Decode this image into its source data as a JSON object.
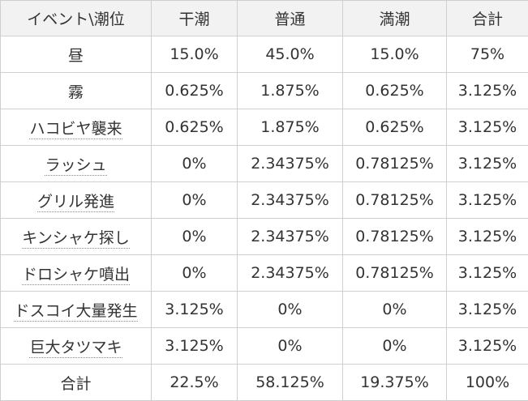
{
  "table": {
    "headers": [
      "イベント\\潮位",
      "干潮",
      "普通",
      "満潮",
      "合計"
    ],
    "rows": [
      {
        "event": "昼",
        "link": false,
        "low": "15.0%",
        "normal": "45.0%",
        "high": "15.0%",
        "total": "75%"
      },
      {
        "event": "霧",
        "link": false,
        "low": "0.625%",
        "normal": "1.875%",
        "high": "0.625%",
        "total": "3.125%"
      },
      {
        "event": "ハコビヤ襲来",
        "link": true,
        "low": "0.625%",
        "normal": "1.875%",
        "high": "0.625%",
        "total": "3.125%"
      },
      {
        "event": "ラッシュ",
        "link": true,
        "low": "0%",
        "normal": "2.34375%",
        "high": "0.78125%",
        "total": "3.125%"
      },
      {
        "event": "グリル発進",
        "link": true,
        "low": "0%",
        "normal": "2.34375%",
        "high": "0.78125%",
        "total": "3.125%"
      },
      {
        "event": "キンシャケ探し",
        "link": true,
        "low": "0%",
        "normal": "2.34375%",
        "high": "0.78125%",
        "total": "3.125%"
      },
      {
        "event": "ドロシャケ噴出",
        "link": true,
        "low": "0%",
        "normal": "2.34375%",
        "high": "0.78125%",
        "total": "3.125%"
      },
      {
        "event": "ドスコイ大量発生",
        "link": true,
        "low": "3.125%",
        "normal": "0%",
        "high": "0%",
        "total": "3.125%"
      },
      {
        "event": "巨大タツマキ",
        "link": true,
        "low": "3.125%",
        "normal": "0%",
        "high": "0%",
        "total": "3.125%"
      },
      {
        "event": "合計",
        "link": false,
        "low": "22.5%",
        "normal": "58.125%",
        "high": "19.375%",
        "total": "100%"
      }
    ]
  },
  "colors": {
    "header_bg": "#f2f2f2",
    "border": "#cfcfcf",
    "text": "#333333"
  }
}
